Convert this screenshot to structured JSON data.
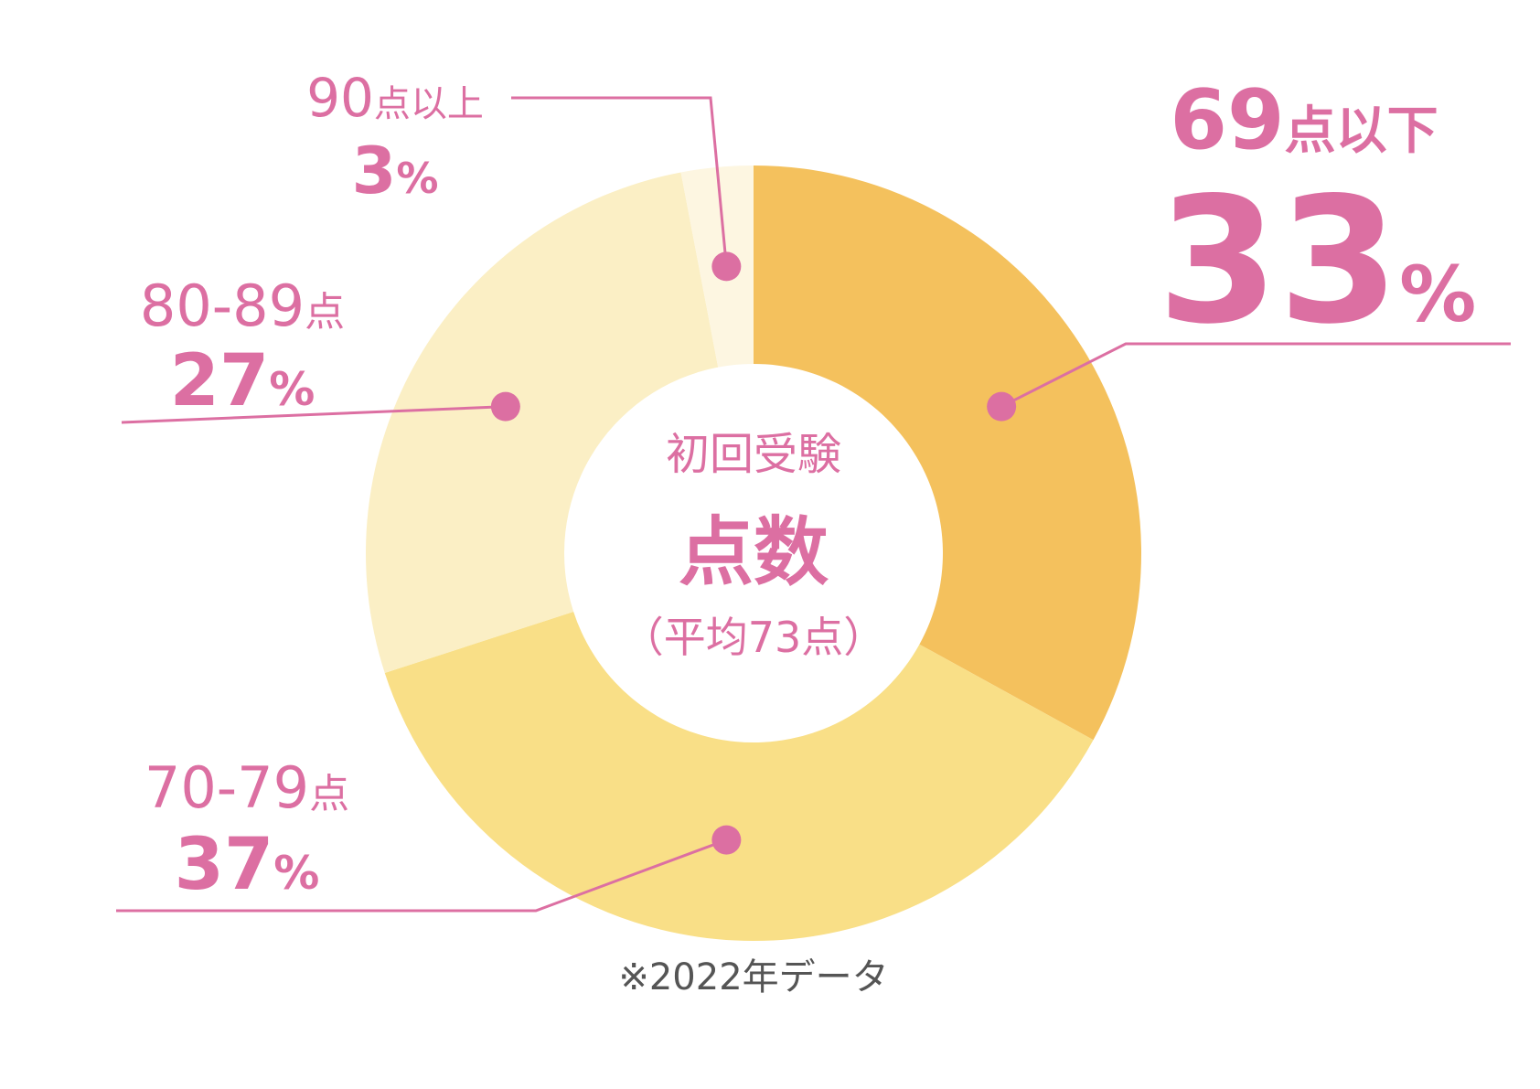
{
  "chart_data": {
    "type": "donut",
    "center_title": "初回受験",
    "center_main": "点数",
    "center_sub": "（平均73点）",
    "categories": [
      "69点以下",
      "70-79点",
      "80-89点",
      "90点以上"
    ],
    "values": [
      33,
      37,
      27,
      3
    ],
    "value_labels": [
      "33%",
      "37%",
      "27%",
      "3%"
    ],
    "colors": [
      "#f4c15d",
      "#f9df87",
      "#fbefc5",
      "#fdf6e1"
    ],
    "label_color": "#dc6fa2",
    "footnote": "※2022年データ"
  }
}
